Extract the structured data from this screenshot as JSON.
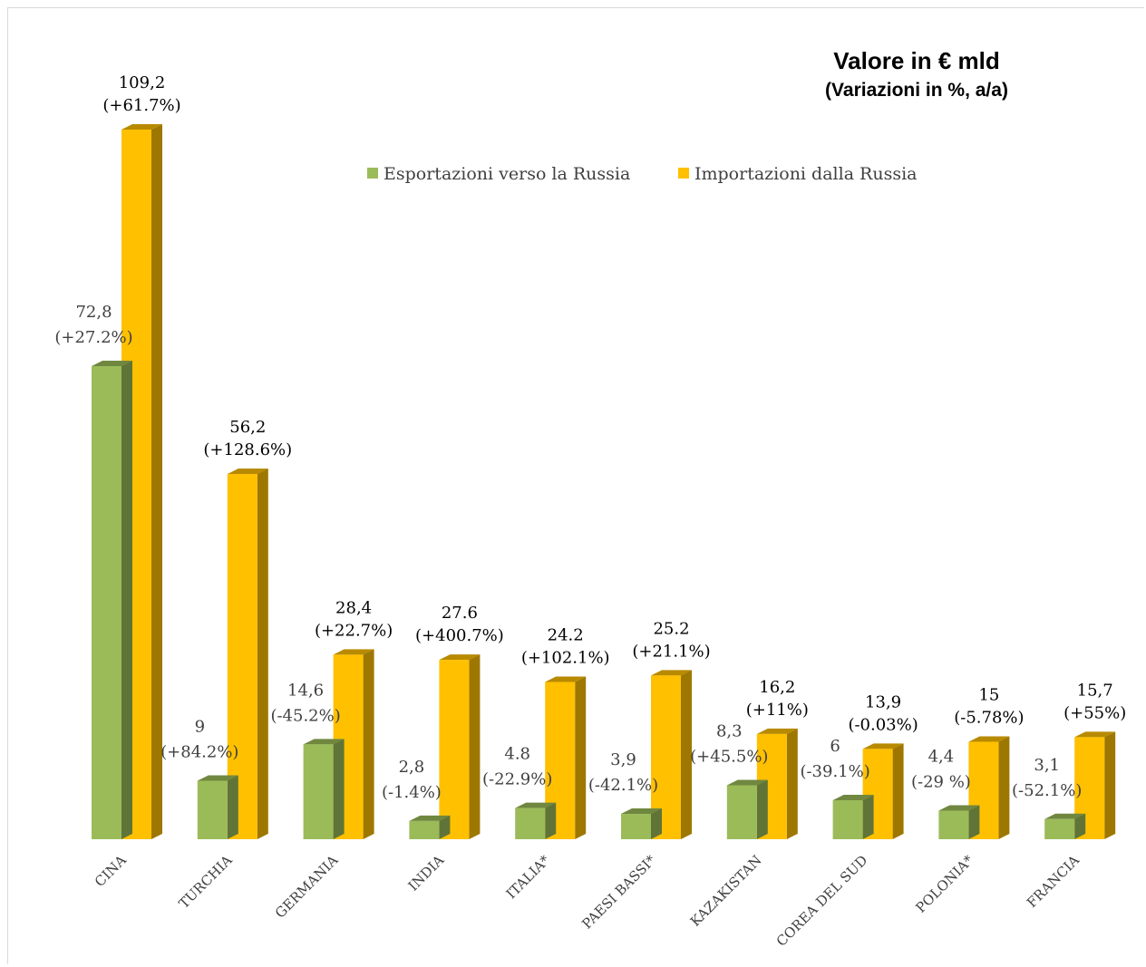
{
  "chart_data": {
    "type": "bar",
    "title": "Valore in € mld",
    "subtitle": "(Variazioni in %, a/a)",
    "categories": [
      "CINA",
      "TURCHIA",
      "GERMANIA",
      "INDIA",
      "ITALIA*",
      "PAESI BASSI*",
      "KAZAKISTAN",
      "COREA DEL SUD",
      "POLONIA*",
      "FRANCIA"
    ],
    "series": [
      {
        "name": "Esportazioni verso la Russia",
        "values": [
          72.8,
          9,
          14.6,
          2.8,
          4.8,
          3.9,
          8.3,
          6,
          4.4,
          3.1
        ],
        "labels": [
          "72,8",
          "9",
          "14,6",
          "2,8",
          "4.8",
          "3,9",
          "8,3",
          "6",
          "4,4",
          "3,1"
        ],
        "changes": [
          "(+27.2%)",
          "(+84.2%)",
          "(-45.2%)",
          "(-1.4%)",
          "(-22.9%)",
          "(-42.1%)",
          "(+45.5%)",
          "(-39.1%)",
          "(-29 %)",
          "(-52.1%)"
        ],
        "color": "#9bbb59"
      },
      {
        "name": "Importazioni dalla Russia",
        "values": [
          109.2,
          56.2,
          28.4,
          27.6,
          24.2,
          25.2,
          16.2,
          13.9,
          15,
          15.7
        ],
        "labels": [
          "109,2",
          "56,2",
          "28,4",
          "27.6",
          "24.2",
          "25.2",
          "16,2",
          "13,9",
          "15",
          "15,7"
        ],
        "changes": [
          "(+61.7%)",
          "(+128.6%)",
          "(+22.7%)",
          "(+400.7%)",
          "(+102.1%)",
          "(+21.1%)",
          "(+11%)",
          "(-0.03%)",
          "(-5.78%)",
          "(+55%)"
        ],
        "color": "#ffc000"
      }
    ],
    "legend": "top-center",
    "grid": false
  }
}
